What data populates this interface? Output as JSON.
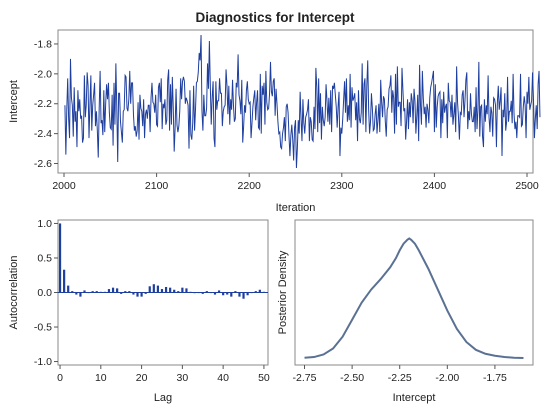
{
  "title": "Diagnostics for Intercept",
  "colors": {
    "trace": "#1f3f9e",
    "acf_bar": "#1f3f9e",
    "density": "#5b7193",
    "frame": "#8a8a8a",
    "background": "#ffffff"
  },
  "chart_data": [
    {
      "type": "line",
      "panel": "trace",
      "title": "Diagnostics for Intercept",
      "xlabel": "Iteration",
      "ylabel": "Intercept",
      "xlim": [
        2000,
        2500
      ],
      "ylim": [
        -2.65,
        -1.72
      ],
      "xticks": [
        2000,
        2100,
        2200,
        2300,
        2400,
        2500
      ],
      "yticks": [
        -2.6,
        -2.4,
        -2.2,
        -2.0,
        -1.8
      ],
      "ytick_labels": [
        "-2.6",
        "-2.4",
        "-2.2",
        "-2.0",
        "-1.8"
      ],
      "x_start": 2001,
      "x_step": 1,
      "values": [
        -2.21,
        -2.54,
        -2.24,
        -2.03,
        -2.3,
        -2.43,
        -1.9,
        -2.16,
        -2.21,
        -2.42,
        -2.09,
        -2.32,
        -2.25,
        -2.49,
        -2.11,
        -2.25,
        -2.17,
        -2.3,
        -2.28,
        -2.46,
        -2.43,
        -2.01,
        -2.29,
        -2.21,
        -1.99,
        -2.08,
        -2.43,
        -2.21,
        -2.01,
        -2.38,
        -2.21,
        -2.14,
        -2.06,
        -2.35,
        -2.25,
        -2.38,
        -2.56,
        -2.23,
        -1.98,
        -2.33,
        -2.31,
        -2.41,
        -2.11,
        -2.39,
        -2.2,
        -2.07,
        -2.17,
        -2.06,
        -2.26,
        -2.36,
        -2.37,
        -2.14,
        -2.48,
        -2.06,
        -2.34,
        -1.93,
        -2.22,
        -2.59,
        -2.13,
        -2.13,
        -2.32,
        -2.39,
        -2.46,
        -2.25,
        -2.24,
        -2.01,
        -2.02,
        -2.23,
        -2.25,
        -2.17,
        -1.98,
        -2.2,
        -2.06,
        -2.06,
        -2.27,
        -2.38,
        -2.35,
        -2.42,
        -2.38,
        -2.19,
        -2.44,
        -2.14,
        -2.23,
        -2.25,
        -2.35,
        -2.17,
        -2.43,
        -2.27,
        -2.24,
        -2.3,
        -2.21,
        -2.21,
        -2.39,
        -2.16,
        -2.06,
        -2.19,
        -2.2,
        -2.26,
        -2.14,
        -2.34,
        -2.35,
        -2.09,
        -2.06,
        -2.19,
        -2.03,
        -2.37,
        -2.2,
        -2.23,
        -2.17,
        -2.34,
        -2.31,
        -2.04,
        -1.97,
        -2.38,
        -2.07,
        -2.34,
        -2.02,
        -2.23,
        -2.52,
        -2.36,
        -2.1,
        -2.34,
        -2.39,
        -2.35,
        -2.25,
        -2.03,
        -2.17,
        -2.05,
        -2.02,
        -2.05,
        -2.2,
        -2.16,
        -2.18,
        -2.21,
        -2.5,
        -2.11,
        -2.41,
        -2.44,
        -2.33,
        -2.08,
        -2.38,
        -2.24,
        -2.06,
        -2.05,
        -1.99,
        -1.86,
        -1.91,
        -1.74,
        -2.25,
        -2.38,
        -2.14,
        -2.28,
        -2.28,
        -2.23,
        -1.93,
        -2.1,
        -1.78,
        -2.08,
        -2.34,
        -2.16,
        -2.05,
        -2.43,
        -2.49,
        -2.05,
        -2.24,
        -2.18,
        -2.18,
        -2.03,
        -2.13,
        -2.13,
        -2.35,
        -2.25,
        -2.22,
        -2.21,
        -1.97,
        -2.08,
        -2.27,
        -2.08,
        -2.34,
        -2.17,
        -2.24,
        -2.04,
        -2.21,
        -2.32,
        -2.3,
        -2.06,
        -2.09,
        -1.87,
        -2.14,
        -2.18,
        -2.27,
        -2.04,
        -2.46,
        -2.35,
        -2.21,
        -2.26,
        -2.11,
        -2.05,
        -2.17,
        -2.2,
        -2.19,
        -2.43,
        -2.33,
        -2.22,
        -2.16,
        -2.11,
        -2.31,
        -2.19,
        -2.11,
        -2.36,
        -2.37,
        -2.0,
        -2.4,
        -2.08,
        -2.14,
        -2.06,
        -2.34,
        -1.98,
        -2.19,
        -2.24,
        -2.23,
        -2.13,
        -1.92,
        -2.12,
        -2.15,
        -2.05,
        -2.03,
        -2.28,
        -2.1,
        -2.2,
        -2.32,
        -2.4,
        -2.39,
        -2.49,
        -2.5,
        -2.4,
        -2.36,
        -2.29,
        -2.45,
        -2.22,
        -2.2,
        -2.26,
        -2.42,
        -2.55,
        -2.41,
        -2.34,
        -2.44,
        -2.58,
        -2.36,
        -2.31,
        -2.63,
        -2.5,
        -2.31,
        -2.4,
        -2.12,
        -2.3,
        -2.45,
        -2.17,
        -2.33,
        -2.4,
        -2.29,
        -2.27,
        -2.24,
        -2.17,
        -2.45,
        -2.29,
        -2.32,
        -2.44,
        -2.45,
        -2.22,
        -2.37,
        -1.96,
        -2.09,
        -2.39,
        -2.03,
        -2.33,
        -2.13,
        -2.44,
        -2.22,
        -2.31,
        -2.35,
        -2.29,
        -2.07,
        -2.18,
        -2.32,
        -2.16,
        -2.34,
        -2.11,
        -2.39,
        -2.08,
        -2.1,
        -2.06,
        -2.14,
        -2.22,
        -2.36,
        -2.22,
        -2.12,
        -2.55,
        -2.36,
        -2.4,
        -2.3,
        -2.17,
        -2.05,
        -2.26,
        -2.03,
        -2.32,
        -2.21,
        -2.31,
        -2.0,
        -2.36,
        -2.09,
        -2.18,
        -2.16,
        -2.13,
        -2.31,
        -2.19,
        -2.45,
        -2.11,
        -2.3,
        -2.33,
        -2.26,
        -1.93,
        -2.34,
        -2.07,
        -2.03,
        -2.39,
        -2.08,
        -1.91,
        -2.24,
        -2.4,
        -2.32,
        -2.13,
        -2.23,
        -2.38,
        -2.37,
        -2.27,
        -2.21,
        -2.4,
        -2.31,
        -2.2,
        -2.39,
        -2.04,
        -2.19,
        -2.29,
        -2.15,
        -2.17,
        -2.32,
        -2.42,
        -2.24,
        -2.22,
        -2.1,
        -2.08,
        -2.01,
        -2.26,
        -2.11,
        -2.16,
        -2.4,
        -2.0,
        -2.34,
        -1.95,
        -2.22,
        -2.19,
        -2.19,
        -2.35,
        -1.96,
        -2.11,
        -2.25,
        -2.23,
        -2.44,
        -2.31,
        -2.17,
        -2.37,
        -2.19,
        -2.29,
        -2.13,
        -2.18,
        -2.33,
        -2.1,
        -2.18,
        -2.4,
        -2.28,
        -2.14,
        -2.45,
        -1.94,
        -2.21,
        -2.34,
        -1.98,
        -2.16,
        -2.27,
        -2.22,
        -2.36,
        -2.2,
        -2.24,
        -2.33,
        -2.16,
        -2.09,
        -2.06,
        -2.02,
        -1.98,
        -2.39,
        -2.07,
        -2.36,
        -2.22,
        -2.15,
        -2.13,
        -2.12,
        -2.43,
        -2.17,
        -2.33,
        -2.12,
        -2.26,
        -2.22,
        -2.2,
        -2.43,
        -2.06,
        -2.18,
        -2.19,
        -2.29,
        -2.14,
        -2.34,
        -2.27,
        -2.19,
        -2.39,
        -1.95,
        -2.19,
        -2.29,
        -2.44,
        -2.26,
        -2.27,
        -2.14,
        -2.11,
        -2.29,
        -2.18,
        -2.04,
        -1.99,
        -2.37,
        -2.25,
        -2.31,
        -2.13,
        -2.27,
        -2.32,
        -2.32,
        -2.22,
        -2.39,
        -2.09,
        -2.37,
        -2.24,
        -1.92,
        -2.42,
        -2.22,
        -2.21,
        -2.42,
        -2.49,
        -2.17,
        -2.32,
        -2.21,
        -2.27,
        -2.01,
        -2.29,
        -2.39,
        -2.22,
        -2.26,
        -2.42,
        -2.16,
        -2.17,
        -2.21,
        -2.49,
        -2.19,
        -2.08,
        -2.24,
        -2.18,
        -2.09,
        -2.55,
        -2.24,
        -2.29,
        -2.13,
        -2.38,
        -2.32,
        -2.02,
        -2.32,
        -2.25,
        -2.25,
        -2.18,
        -2.33,
        -2.0,
        -2.27,
        -2.37,
        -2.32,
        -2.43,
        -2.28,
        -2.28,
        -2.29,
        -2.0,
        -2.35,
        -2.34,
        -2.22,
        -2.15,
        -2.21,
        -2.43,
        -2.12,
        -2.2,
        -2.02,
        -2.24,
        -2.21,
        -2.18,
        -1.99,
        -2.17,
        -2.43,
        -2.3,
        -2.21,
        -2.37,
        -2.07,
        -1.98,
        -2.29
      ]
    },
    {
      "type": "bar",
      "panel": "autocorrelation",
      "xlabel": "Lag",
      "ylabel": "Autocorrelation",
      "xlim": [
        -0.5,
        51
      ],
      "ylim": [
        -1.05,
        1.05
      ],
      "xticks": [
        0,
        10,
        20,
        30,
        40,
        50
      ],
      "yticks": [
        -1.0,
        -0.5,
        0.0,
        0.5,
        1.0
      ],
      "ytick_labels": [
        "-1.0",
        "-0.5",
        "0.0",
        "0.5",
        "1.0"
      ],
      "lags": [
        0,
        1,
        2,
        3,
        4,
        5,
        6,
        7,
        8,
        9,
        10,
        11,
        12,
        13,
        14,
        15,
        16,
        17,
        18,
        19,
        20,
        21,
        22,
        23,
        24,
        25,
        26,
        27,
        28,
        29,
        30,
        31,
        32,
        33,
        34,
        35,
        36,
        37,
        38,
        39,
        40,
        41,
        42,
        43,
        44,
        45,
        46,
        47,
        48,
        49,
        50
      ],
      "values": [
        1.0,
        0.33,
        0.1,
        0.02,
        -0.03,
        -0.06,
        0.03,
        0.0,
        0.02,
        0.02,
        0.01,
        0.01,
        0.05,
        0.07,
        0.06,
        -0.02,
        0.02,
        0.02,
        -0.03,
        -0.06,
        -0.06,
        -0.02,
        0.09,
        0.12,
        0.1,
        0.05,
        0.08,
        0.07,
        0.04,
        0.02,
        0.07,
        0.06,
        0.01,
        -0.01,
        0.0,
        -0.02,
        0.02,
        0.0,
        -0.03,
        0.03,
        -0.04,
        -0.03,
        -0.06,
        0.02,
        -0.06,
        -0.09,
        -0.04,
        0.0,
        0.02,
        0.04,
        0.01
      ]
    },
    {
      "type": "line",
      "panel": "posterior-density",
      "xlabel": "Intercept",
      "ylabel": "Posterior Density",
      "xlim": [
        -2.8,
        -1.55
      ],
      "ylim": [
        0,
        1
      ],
      "xticks": [
        -2.75,
        -2.5,
        -2.25,
        -2.0,
        -1.75
      ],
      "xtick_labels": [
        "-2.75",
        "-2.50",
        "-2.25",
        "-2.00",
        "-1.75"
      ],
      "x": [
        -2.75,
        -2.7,
        -2.65,
        -2.6,
        -2.55,
        -2.5,
        -2.45,
        -2.4,
        -2.35,
        -2.3,
        -2.27,
        -2.25,
        -2.23,
        -2.21,
        -2.2,
        -2.19,
        -2.17,
        -2.15,
        -2.1,
        -2.05,
        -2.0,
        -1.95,
        -1.9,
        -1.85,
        -1.8,
        -1.75,
        -1.7,
        -1.65,
        -1.6
      ],
      "y": [
        0.01,
        0.015,
        0.035,
        0.08,
        0.17,
        0.3,
        0.43,
        0.53,
        0.61,
        0.7,
        0.77,
        0.83,
        0.88,
        0.91,
        0.92,
        0.91,
        0.88,
        0.83,
        0.69,
        0.53,
        0.37,
        0.23,
        0.13,
        0.07,
        0.04,
        0.025,
        0.015,
        0.01,
        0.008
      ]
    }
  ]
}
